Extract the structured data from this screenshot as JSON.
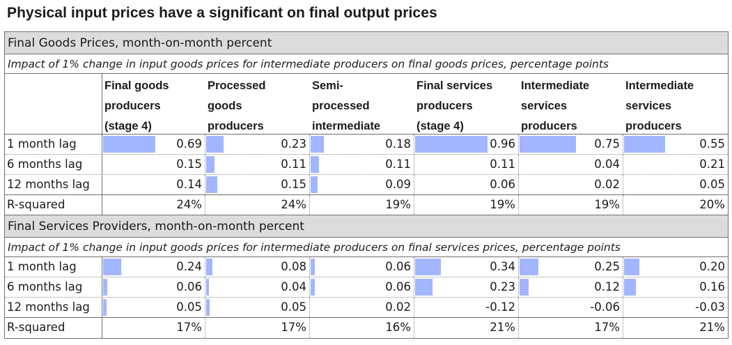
{
  "title": "Physical input prices have a significant on final output prices",
  "columns": [
    [
      "Final goods",
      "producers",
      "(stage 4)"
    ],
    [
      "Processed",
      "goods",
      "producers"
    ],
    [
      "Semi-",
      "processed",
      "intermediate"
    ],
    [
      "Final services",
      "producers",
      "(stage 4)"
    ],
    [
      "Intermediate",
      "services",
      "producers"
    ],
    [
      "Intermediate",
      "services",
      "producers"
    ]
  ],
  "sections": [
    {
      "heading": "Final Goods Prices, month-on-month percent",
      "subheading": "Impact of 1% change in input goods prices for intermediate producers on final goods prices, percentage points",
      "rows": [
        {
          "label": "1 month lag",
          "values": [
            "0.69",
            "0.23",
            "0.18",
            "0.96",
            "0.75",
            "0.55"
          ],
          "bars": [
            0.69,
            0.23,
            0.18,
            0.96,
            0.75,
            0.55
          ]
        },
        {
          "label": "6 months lag",
          "values": [
            "0.15",
            "0.11",
            "0.11",
            "0.11",
            "0.04",
            "0.21"
          ],
          "bars": [
            0,
            0.11,
            0.11,
            0,
            0,
            0
          ]
        },
        {
          "label": "12 months lag",
          "values": [
            "0.14",
            "0.15",
            "0.09",
            "0.06",
            "0.02",
            "0.05"
          ],
          "bars": [
            0,
            0.15,
            0.09,
            0,
            0,
            0
          ]
        }
      ],
      "r_squared": {
        "label": "R-squared",
        "values": [
          "24%",
          "24%",
          "19%",
          "19%",
          "19%",
          "20%"
        ]
      }
    },
    {
      "heading": "Final Services Providers, month-on-month percent",
      "subheading": "Impact of 1% change in input goods prices for intermediate producers on final services prices, percentage points",
      "rows": [
        {
          "label": "1 month lag",
          "values": [
            "0.24",
            "0.08",
            "0.06",
            "0.34",
            "0.25",
            "0.20"
          ],
          "bars": [
            0.24,
            0.08,
            0.06,
            0.34,
            0.25,
            0.2
          ]
        },
        {
          "label": "6 months lag",
          "values": [
            "0.06",
            "0.04",
            "0.06",
            "0.23",
            "0.12",
            "0.16"
          ],
          "bars": [
            0.06,
            0.04,
            0.06,
            0.23,
            0.12,
            0.16
          ]
        },
        {
          "label": "12 months lag",
          "values": [
            "0.05",
            "0.05",
            "0.02",
            "-0.12",
            "-0.06",
            "-0.03"
          ],
          "bars": [
            0.05,
            0.05,
            0,
            0,
            0,
            0
          ]
        }
      ],
      "r_squared": {
        "label": "R-squared",
        "values": [
          "17%",
          "17%",
          "16%",
          "21%",
          "17%",
          "21%"
        ]
      }
    }
  ],
  "colors": {
    "bar": "#a1b6ff",
    "banner": "#dcdcdc"
  }
}
